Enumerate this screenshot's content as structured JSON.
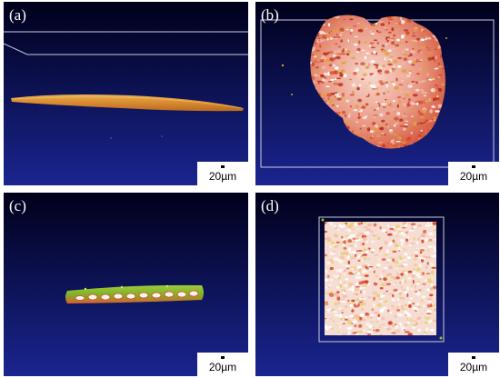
{
  "panels": [
    {
      "label": "(a)",
      "scale": "20µm"
    },
    {
      "label": "(b)",
      "scale": "20µm"
    },
    {
      "label": "(c)",
      "scale": "20µm"
    },
    {
      "label": "(d)",
      "scale": "20µm"
    }
  ],
  "colors": {
    "background_top": "#000018",
    "background_bottom": "#1a2590",
    "particle_orange": "#e0a040",
    "particle_red": "#d84828",
    "particle_pink": "#f3b9a8",
    "particle_green": "#8ec030"
  }
}
